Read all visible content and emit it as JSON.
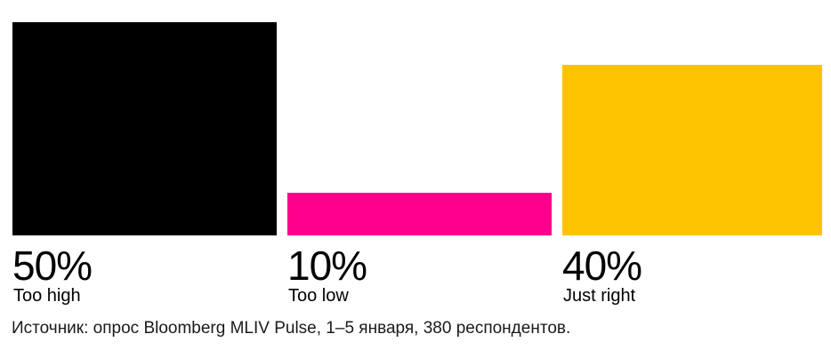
{
  "chart_data": {
    "type": "bar",
    "categories": [
      "Too high",
      "Too low",
      "Just right"
    ],
    "values": [
      50,
      10,
      40
    ],
    "value_labels": [
      "50%",
      "10%",
      "40%"
    ],
    "colors": [
      "#000000",
      "#ff008c",
      "#fdc300"
    ],
    "ylim": [
      0,
      50
    ]
  },
  "footer": {
    "source": "Источник: опрос Bloomberg MLIV Pulse, 1–5 января, 380 респондентов."
  }
}
